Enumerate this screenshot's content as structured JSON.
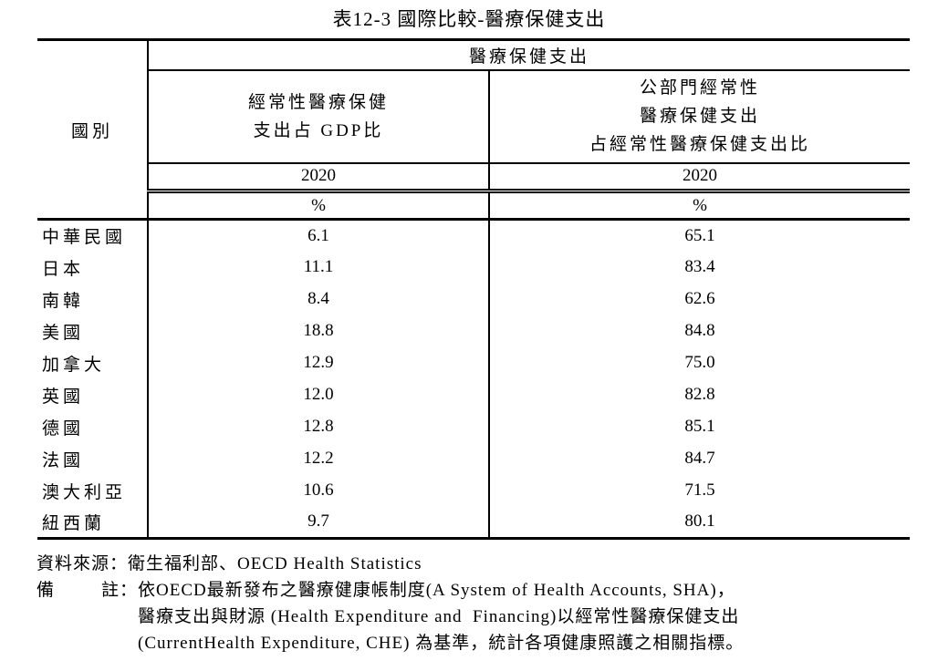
{
  "title": "表12-3 國際比較-醫療保健支出",
  "colors": {
    "ink": "#000000",
    "background": "#ffffff"
  },
  "table": {
    "country_col_header": "國別",
    "group_header": "醫療保健支出",
    "gdp_header_lines": [
      "經常性醫療保健",
      "支出占 GDP比"
    ],
    "public_header_lines": [
      "公部門經常性",
      "醫療保健支出",
      "占經常性醫療保健支出比"
    ],
    "gdp_year": "2020",
    "public_year": "2020",
    "gdp_unit": "%",
    "public_unit": "%",
    "rows": [
      {
        "country": "中華民國",
        "gdp_pct": "6.1",
        "public_pct": "65.1"
      },
      {
        "country": "日本",
        "gdp_pct": "11.1",
        "public_pct": "83.4"
      },
      {
        "country": "南韓",
        "gdp_pct": "8.4",
        "public_pct": "62.6"
      },
      {
        "country": "美國",
        "gdp_pct": "18.8",
        "public_pct": "84.8"
      },
      {
        "country": "加拿大",
        "gdp_pct": "12.9",
        "public_pct": "75.0"
      },
      {
        "country": "英國",
        "gdp_pct": "12.0",
        "public_pct": "82.8"
      },
      {
        "country": "德國",
        "gdp_pct": "12.8",
        "public_pct": "85.1"
      },
      {
        "country": "法國",
        "gdp_pct": "12.2",
        "public_pct": "84.7"
      },
      {
        "country": "澳大利亞",
        "gdp_pct": "10.6",
        "public_pct": "71.5"
      },
      {
        "country": "紐西蘭",
        "gdp_pct": "9.7",
        "public_pct": "80.1"
      }
    ]
  },
  "notes": {
    "source_label": "資料來源：",
    "source_text": "衛生福利部、OECD Health Statistics",
    "note_label_bei": "備",
    "note_label_zhu": "註：",
    "note_lines": [
      "依OECD最新發布之醫療健康帳制度(A System of Health Accounts, SHA)，",
      "醫療支出與財源 (Health Expenditure and  Financing)以經常性醫療保健支出",
      "(CurrentHealth Expenditure, CHE) 為基準，統計各項健康照護之相關指標。"
    ]
  }
}
